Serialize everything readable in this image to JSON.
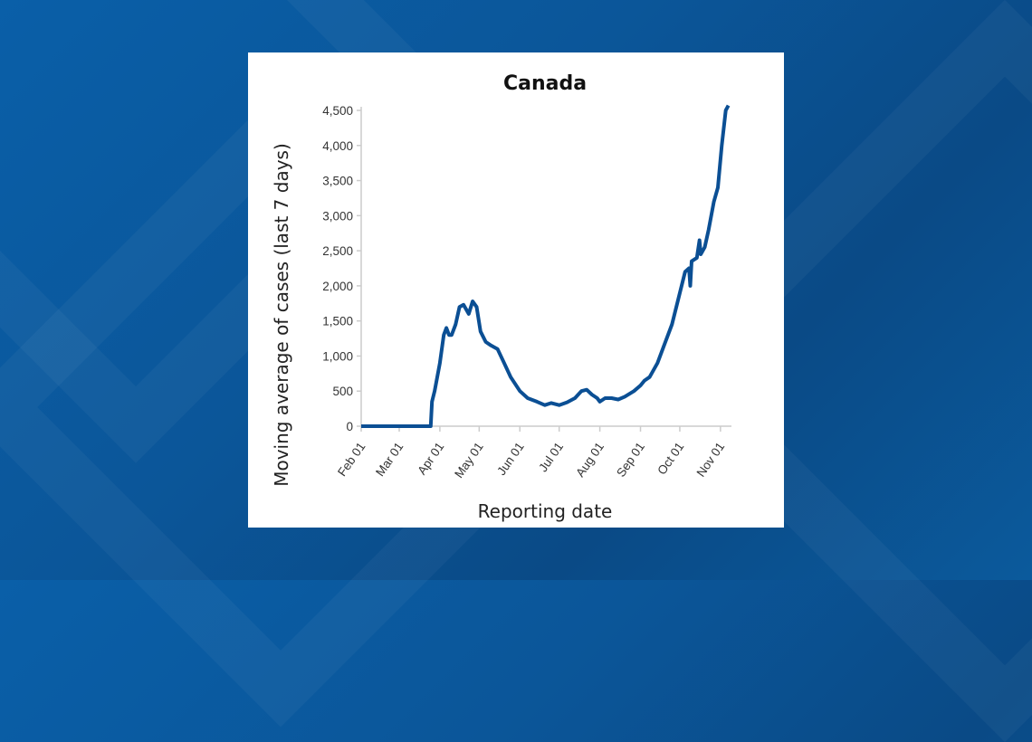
{
  "chart_data": {
    "type": "line",
    "title": "Canada",
    "xlabel": "Reporting date",
    "ylabel": "Moving average of cases (last 7 days)",
    "ylim": [
      0,
      4500
    ],
    "yticks": [
      0,
      500,
      1000,
      1500,
      2000,
      2500,
      3000,
      3500,
      4000,
      4500
    ],
    "ytick_labels": [
      "0",
      "500",
      "1,000",
      "1,500",
      "2,000",
      "2,500",
      "3,000",
      "3,500",
      "4,000",
      "4,500"
    ],
    "xticks": [
      "2020-02-01",
      "2020-03-01",
      "2020-04-01",
      "2020-05-01",
      "2020-06-01",
      "2020-07-01",
      "2020-08-01",
      "2020-09-01",
      "2020-10-01",
      "2020-11-01"
    ],
    "xtick_labels": [
      "Feb 01",
      "Mar 01",
      "Apr 01",
      "May 01",
      "Jun 01",
      "Jul 01",
      "Aug 01",
      "Sep 01",
      "Oct 01",
      "Nov 01"
    ],
    "xlim": [
      "2020-02-01",
      "2020-11-08"
    ],
    "grid": false,
    "color": "#0b4f94",
    "series": [
      {
        "name": "Canada",
        "x": [
          "2020-02-01",
          "2020-03-25",
          "2020-03-26",
          "2020-03-28",
          "2020-04-01",
          "2020-04-04",
          "2020-04-06",
          "2020-04-08",
          "2020-04-10",
          "2020-04-13",
          "2020-04-16",
          "2020-04-19",
          "2020-04-23",
          "2020-04-26",
          "2020-04-29",
          "2020-05-02",
          "2020-05-06",
          "2020-05-10",
          "2020-05-15",
          "2020-05-20",
          "2020-05-25",
          "2020-06-01",
          "2020-06-07",
          "2020-06-14",
          "2020-06-20",
          "2020-06-25",
          "2020-07-01",
          "2020-07-07",
          "2020-07-13",
          "2020-07-18",
          "2020-07-22",
          "2020-07-26",
          "2020-07-30",
          "2020-08-01",
          "2020-08-05",
          "2020-08-10",
          "2020-08-15",
          "2020-08-20",
          "2020-08-27",
          "2020-09-01",
          "2020-09-04",
          "2020-09-08",
          "2020-09-14",
          "2020-09-20",
          "2020-09-25",
          "2020-10-01",
          "2020-10-05",
          "2020-10-08",
          "2020-10-09",
          "2020-10-10",
          "2020-10-14",
          "2020-10-16",
          "2020-10-17",
          "2020-10-20",
          "2020-10-23",
          "2020-10-27",
          "2020-10-30",
          "2020-11-02",
          "2020-11-05",
          "2020-11-07"
        ],
        "values": [
          0,
          0,
          350,
          500,
          900,
          1300,
          1400,
          1300,
          1300,
          1450,
          1700,
          1730,
          1600,
          1780,
          1700,
          1350,
          1200,
          1150,
          1100,
          900,
          700,
          500,
          400,
          350,
          300,
          330,
          300,
          340,
          400,
          500,
          520,
          450,
          400,
          350,
          400,
          400,
          380,
          420,
          500,
          580,
          650,
          700,
          900,
          1200,
          1450,
          1900,
          2200,
          2250,
          2000,
          2350,
          2400,
          2650,
          2450,
          2550,
          2800,
          3200,
          3400,
          4000,
          4500,
          4570
        ]
      }
    ]
  }
}
